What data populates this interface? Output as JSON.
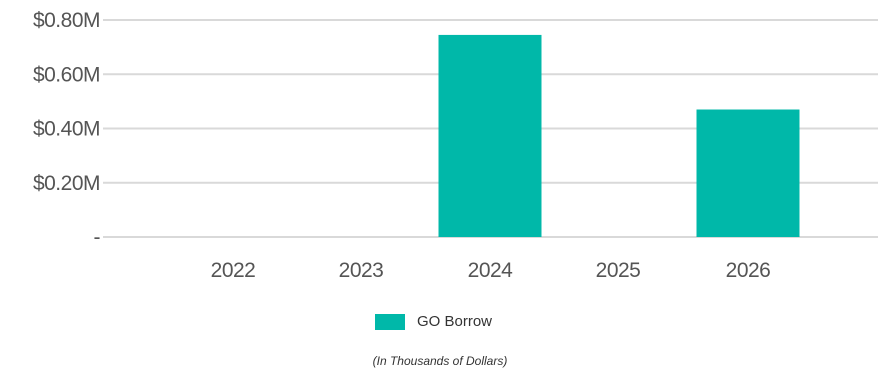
{
  "chart_data": {
    "type": "bar",
    "categories": [
      "2022",
      "2023",
      "2024",
      "2025",
      "2026"
    ],
    "series": [
      {
        "name": "GO Borrow",
        "values": [
          0,
          0,
          0.745,
          0,
          0.47
        ],
        "color": "#00B8A9"
      }
    ],
    "ylim": [
      0,
      0.8
    ],
    "yticks": [
      {
        "value": 0,
        "label": "-"
      },
      {
        "value": 0.2,
        "label": "$0.20M"
      },
      {
        "value": 0.4,
        "label": "$0.40M"
      },
      {
        "value": 0.6,
        "label": "$0.60M"
      },
      {
        "value": 0.8,
        "label": "$0.80M"
      }
    ],
    "grid": true,
    "gridColor": "#d9d9d9",
    "legend_position": "bottom",
    "footnote": "(In Thousands of Dollars)"
  }
}
